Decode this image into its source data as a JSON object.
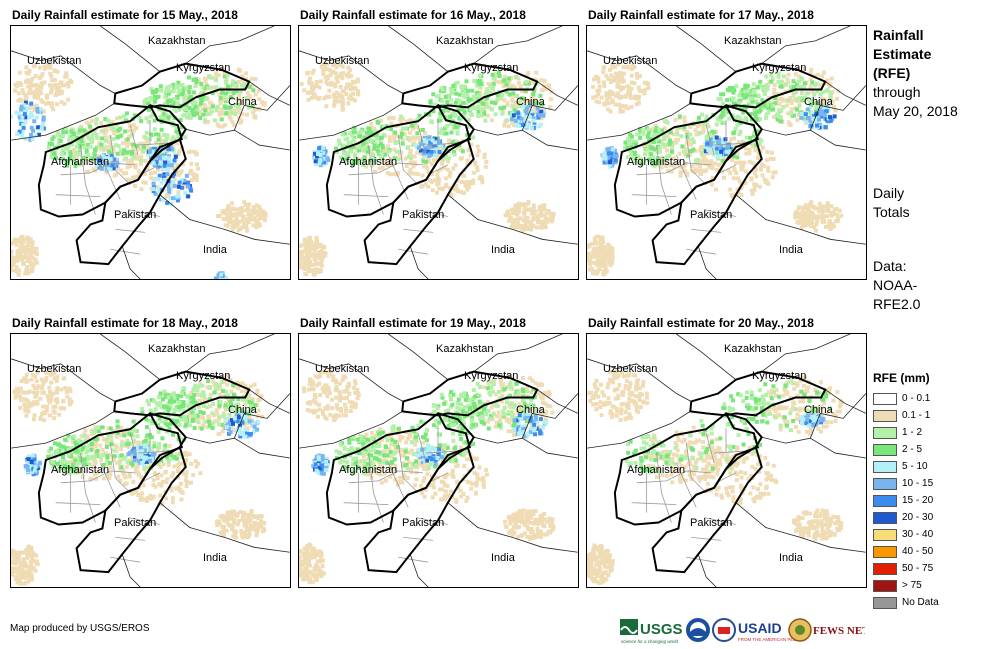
{
  "panels": [
    {
      "title": "Daily Rainfall estimate for 15 May., 2018",
      "rain_level": "heavy-west"
    },
    {
      "title": "Daily Rainfall estimate for 16 May., 2018",
      "rain_level": "moderate"
    },
    {
      "title": "Daily Rainfall estimate for 17 May., 2018",
      "rain_level": "moderate"
    },
    {
      "title": "Daily Rainfall estimate for 18 May., 2018",
      "rain_level": "moderate"
    },
    {
      "title": "Daily Rainfall estimate for 19 May., 2018",
      "rain_level": "moderate"
    },
    {
      "title": "Daily Rainfall estimate for 20 May., 2018",
      "rain_level": "light"
    }
  ],
  "map_labels": {
    "kazakhstan": "Kazakhstan",
    "uzbekistan": "Uzbekistan",
    "kyrgyzstan": "Kyrgyzstan",
    "china": "China",
    "afghanistan": "Afghanistan",
    "pakistan": "Pakistan",
    "india": "India"
  },
  "side": {
    "title_bold_1": "Rainfall",
    "title_bold_2": "Estimate",
    "title_bold_3": "(RFE)",
    "through": "through",
    "date": "May 20, 2018",
    "daily_1": "Daily",
    "daily_2": "Totals",
    "data_1": "Data:",
    "data_2": "NOAA-",
    "data_3": "RFE2.0"
  },
  "legend": {
    "title": "RFE (mm)",
    "items": [
      {
        "label": "0 - 0.1",
        "color": "#ffffff"
      },
      {
        "label": "0.1 - 1",
        "color": "#f0dcb4"
      },
      {
        "label": "1 - 2",
        "color": "#b4f0aa"
      },
      {
        "label": "2 - 5",
        "color": "#78e678"
      },
      {
        "label": "5 - 10",
        "color": "#b4f0fa"
      },
      {
        "label": "10 - 15",
        "color": "#78b4f0"
      },
      {
        "label": "15 - 20",
        "color": "#3c8cf0"
      },
      {
        "label": "20 - 30",
        "color": "#1e5ad2"
      },
      {
        "label": "30 - 40",
        "color": "#fadc78"
      },
      {
        "label": "40 - 50",
        "color": "#fa9600"
      },
      {
        "label": "50 - 75",
        "color": "#e61e00"
      },
      {
        "label": "> 75",
        "color": "#a01414"
      },
      {
        "label": "No Data",
        "color": "#969696"
      }
    ]
  },
  "credit": "Map produced by USGS/EROS",
  "logos": {
    "usgs": "USGS",
    "usgs_tagline": "science for a changing world",
    "usaid": "USAID",
    "usaid_tagline": "FROM THE AMERICAN PEOPLE",
    "fewsnet": "FEWS NET"
  }
}
